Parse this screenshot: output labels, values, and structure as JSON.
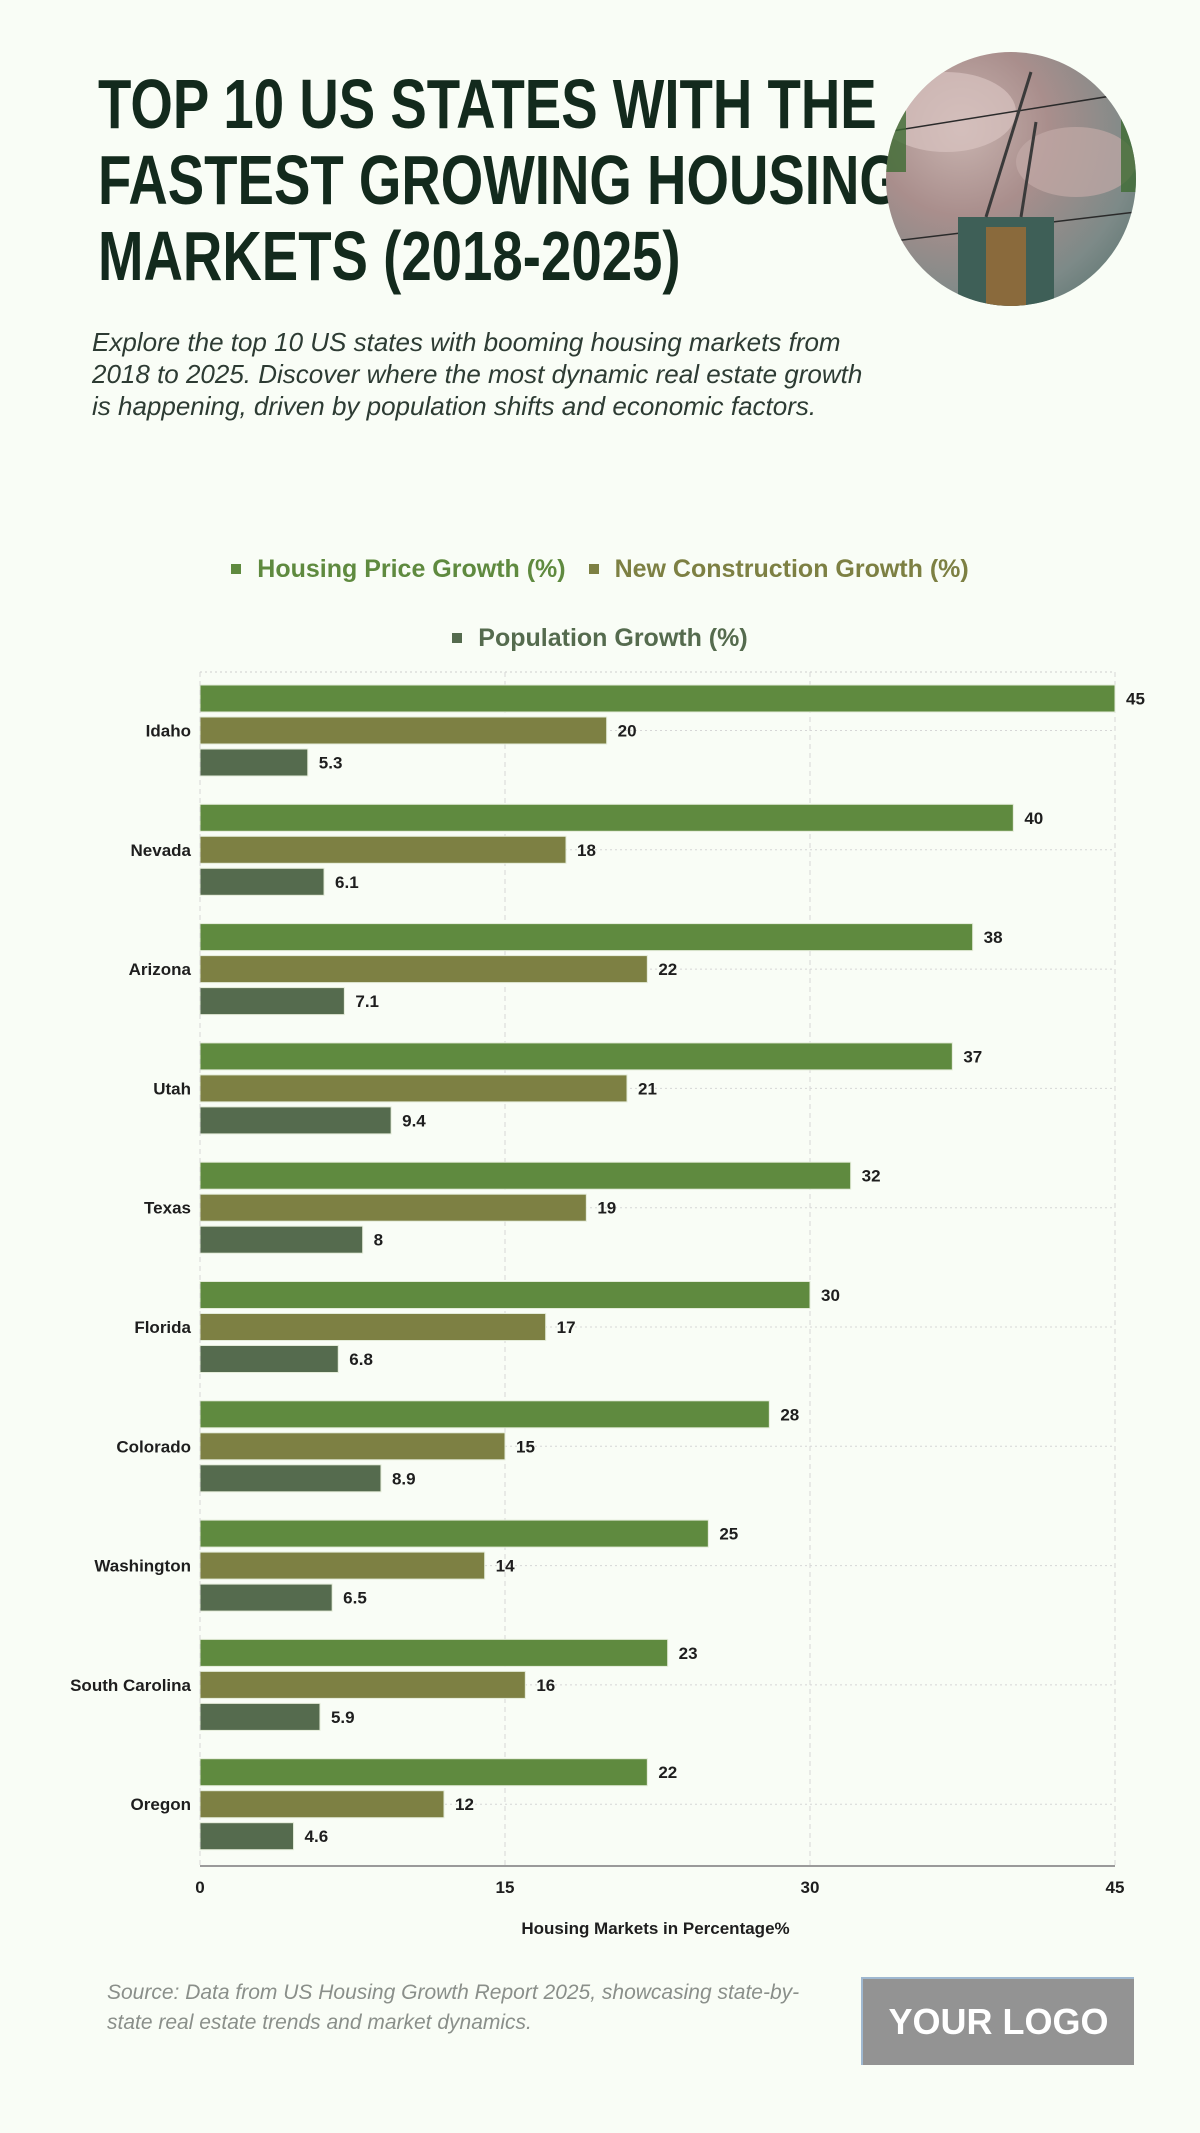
{
  "header": {
    "title_lines": [
      "TOP 10 US STATES WITH THE",
      "FASTEST GROWING HOUSING",
      "MARKETS (2018-2025)"
    ],
    "subtitle": "Explore the top 10 US states with booming housing markets from 2018 to 2025. Discover where the most dynamic real estate growth is happening, driven by population shifts and economic factors.",
    "image": "construction-crane-photo"
  },
  "chart_data": {
    "type": "bar",
    "orientation": "horizontal",
    "title": "TOP 10 US STATES WITH THE FASTEST GROWING HOUSING MARKETS (2018-2025)",
    "categories": [
      "Idaho",
      "Nevada",
      "Arizona",
      "Utah",
      "Texas",
      "Florida",
      "Colorado",
      "Washington",
      "South Carolina",
      "Oregon"
    ],
    "series": [
      {
        "name": "Housing Price Growth (%)",
        "color": "#5f8a3f",
        "values": [
          45,
          40,
          38,
          37,
          32,
          30,
          28,
          25,
          23,
          22
        ]
      },
      {
        "name": "New Construction Growth (%)",
        "color": "#7d8043",
        "values": [
          20,
          18,
          22,
          21,
          19,
          17,
          15,
          14,
          16,
          12
        ]
      },
      {
        "name": "Population Growth (%)",
        "color": "#556b4e",
        "values": [
          5.3,
          6.1,
          7.1,
          9.4,
          8,
          6.8,
          8.9,
          6.5,
          5.9,
          4.6
        ]
      }
    ],
    "xlabel": "Housing Markets in Percentage%",
    "ylabel": "",
    "xlim": [
      0,
      45
    ],
    "xticks": [
      "0",
      "15",
      "30",
      "45"
    ],
    "grid": true,
    "legend_placement": "top"
  },
  "footer": {
    "source": "Source: Data from US Housing Growth Report 2025, showcasing state-by-state real estate trends and market dynamics.",
    "logo": "YOUR LOGO"
  }
}
